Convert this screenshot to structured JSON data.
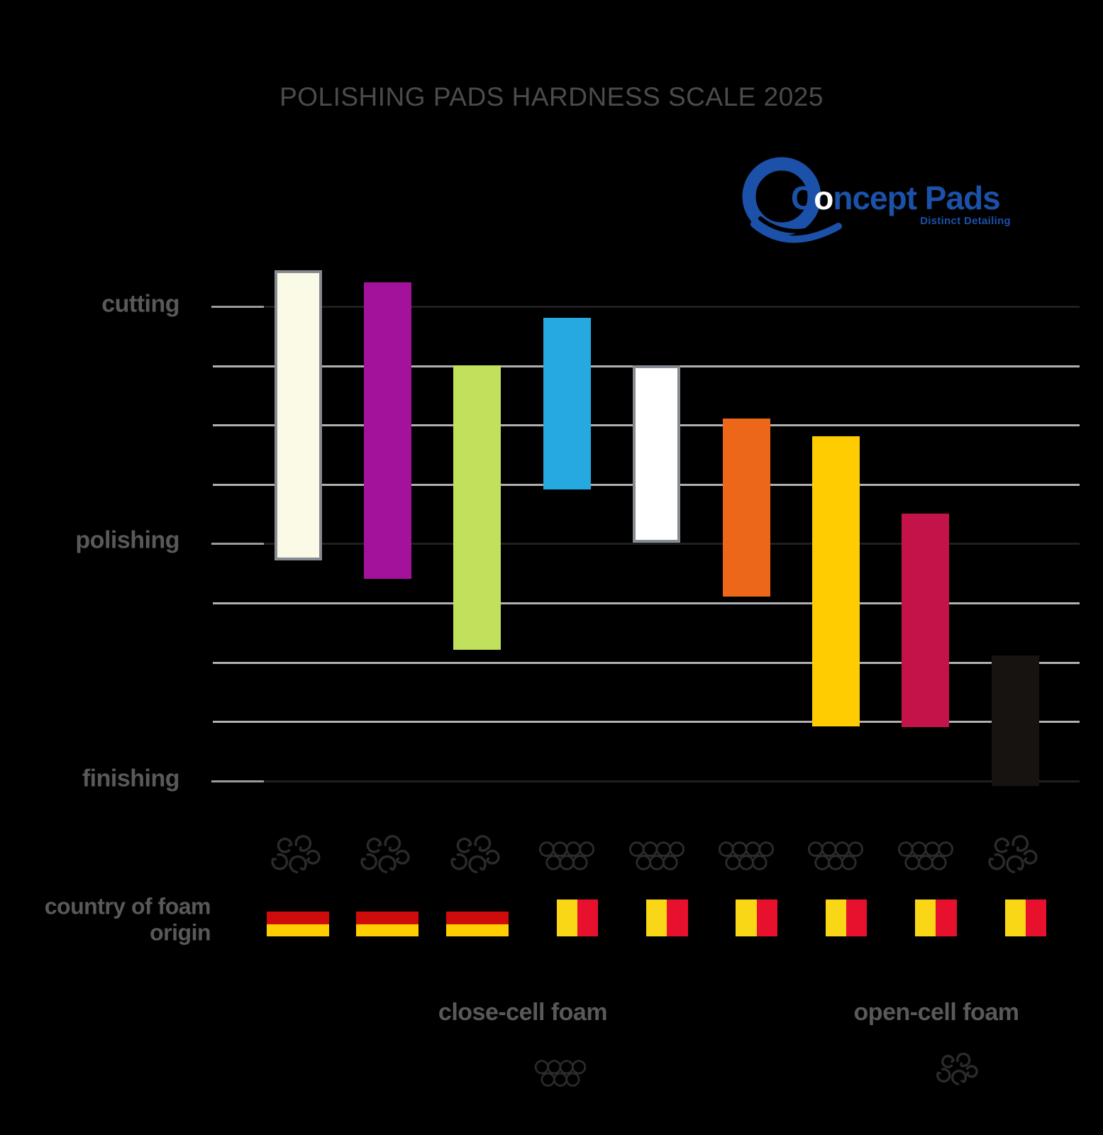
{
  "title": "POLISHING PADS HARDNESS SCALE 2025",
  "logo": {
    "text_c": "C",
    "text_o": "o",
    "text_rest": "ncept Pads",
    "tagline": "Distinct Detailing",
    "brand_blue": "#1B51A8",
    "o_color": "#FFFFFF"
  },
  "axis": {
    "labels": [
      "cutting",
      "polishing",
      "finishing"
    ]
  },
  "left_axis_label": "country of foam origin",
  "legend": {
    "close_label": "close-cell foam",
    "open_label": "open-cell foam"
  },
  "colors": {
    "background": "#000000",
    "title_color": "#4B4B4E",
    "label_color": "#59595C",
    "grid_minor": "#B0B0B0",
    "grid_major": "#1F1F1F",
    "tick": "#9A9A9A",
    "icon": "#2B2B2B"
  },
  "flags": {
    "Germany": {
      "orientation": "horizontal",
      "colors": [
        "#000000",
        "#CF0B0B",
        "#FFCE00"
      ]
    },
    "Belgium": {
      "orientation": "vertical",
      "colors": [
        "#000000",
        "#F9D616",
        "#E8112D"
      ]
    }
  },
  "chart_data": {
    "type": "range-bar",
    "title": "POLISHING PADS HARDNESS SCALE 2025",
    "y_axis": {
      "labels": [
        "cutting",
        "polishing",
        "finishing"
      ],
      "scale_top": 10,
      "scale_bottom": 2,
      "gridline_count": 9,
      "major_every": 4,
      "description": "hardness scale, cutting (hard) at top line = 10, polishing at middle line = 6, finishing (soft) at bottom line = 2"
    },
    "legend_position": "bottom",
    "grid": true,
    "series": [
      {
        "color": "#FAFAE6",
        "border": "#868B91",
        "hardness_range": [
          5.7,
          10.6
        ],
        "foam": "open-cell",
        "origin": "Germany"
      },
      {
        "color": "#A3129B",
        "border": null,
        "hardness_range": [
          5.4,
          10.4
        ],
        "foam": "open-cell",
        "origin": "Germany"
      },
      {
        "color": "#C1E05C",
        "border": null,
        "hardness_range": [
          4.2,
          9.0
        ],
        "foam": "open-cell",
        "origin": "Germany"
      },
      {
        "color": "#25A9E0",
        "border": null,
        "hardness_range": [
          6.9,
          9.8
        ],
        "foam": "close-cell",
        "origin": "Belgium"
      },
      {
        "color": "#FFFFFF",
        "border": "#868B91",
        "hardness_range": [
          6.0,
          9.0
        ],
        "foam": "close-cell",
        "origin": "Belgium"
      },
      {
        "color": "#EC671A",
        "border": null,
        "hardness_range": [
          5.1,
          8.1
        ],
        "foam": "close-cell",
        "origin": "Belgium"
      },
      {
        "color": "#FECC00",
        "border": null,
        "hardness_range": [
          2.9,
          7.8
        ],
        "foam": "close-cell",
        "origin": "Belgium"
      },
      {
        "color": "#C41349",
        "border": null,
        "hardness_range": [
          2.9,
          6.5
        ],
        "foam": "close-cell",
        "origin": "Belgium"
      },
      {
        "color": "#161310",
        "border": null,
        "hardness_range": [
          1.9,
          4.1
        ],
        "foam": "open-cell",
        "origin": "Belgium"
      }
    ]
  }
}
